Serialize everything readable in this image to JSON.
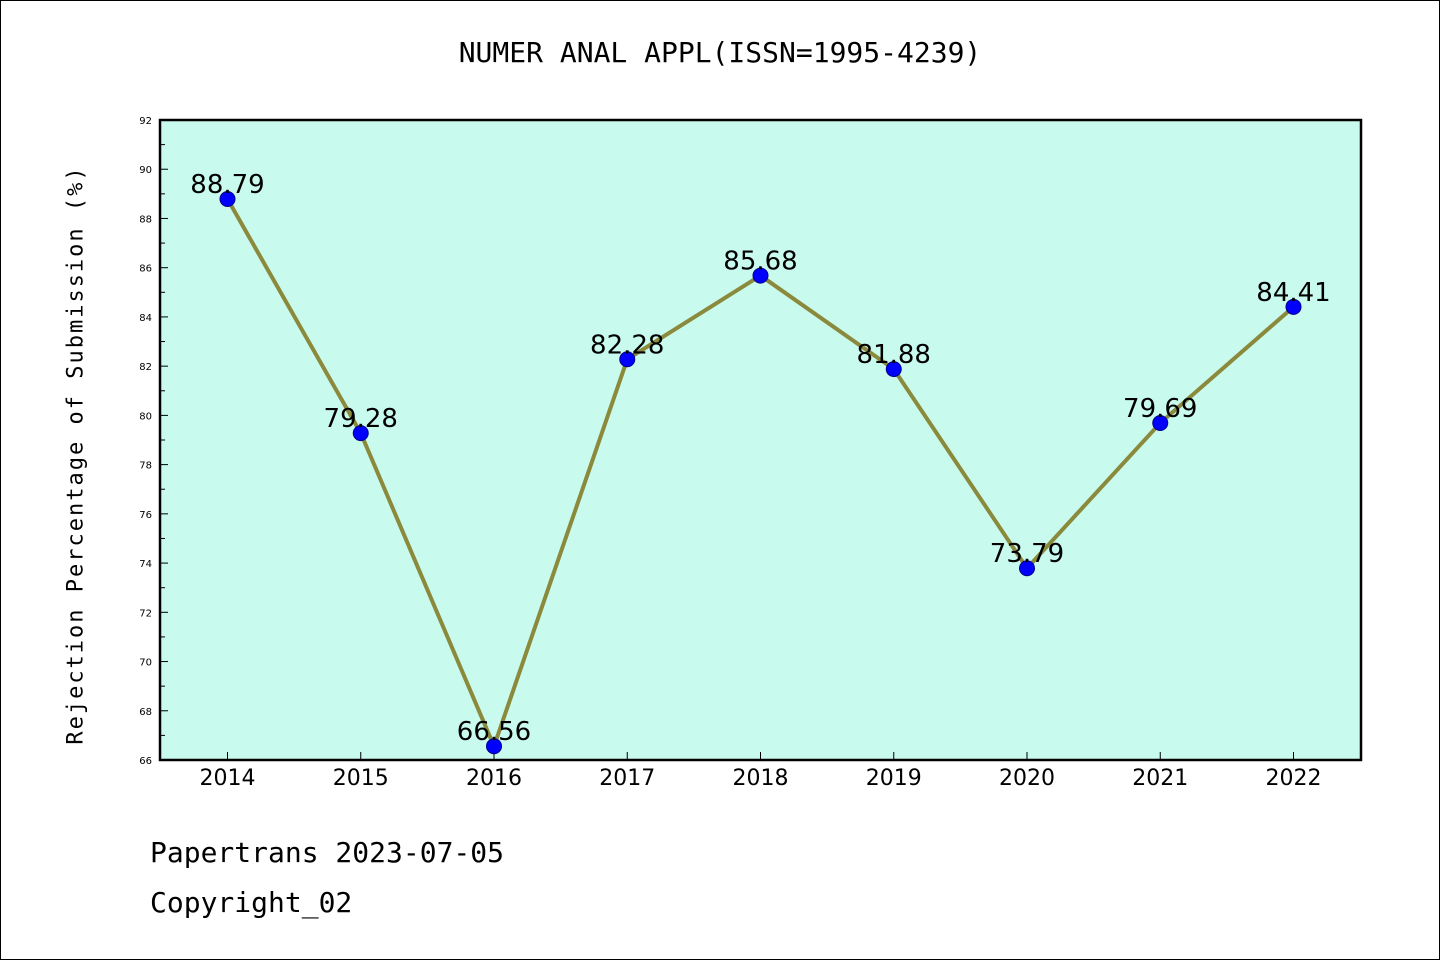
{
  "chart_data": {
    "type": "line",
    "title": "NUMER ANAL APPL(ISSN=1995-4239)",
    "xlabel": "",
    "ylabel": "Rejection Percentage of Submission (%)",
    "categories": [
      "2014",
      "2015",
      "2016",
      "2017",
      "2018",
      "2019",
      "2020",
      "2021",
      "2022"
    ],
    "series": [
      {
        "values": [
          88.79,
          79.28,
          66.56,
          82.28,
          85.68,
          81.88,
          73.79,
          79.69,
          84.41
        ],
        "data_labels": [
          "88.79",
          "79.28",
          "66.56",
          "82.28",
          "85.68",
          "81.88",
          "73.79",
          "79.69",
          "84.41"
        ]
      }
    ],
    "ylim": [
      66,
      92
    ],
    "y_ticks": [
      "66",
      "68",
      "70",
      "72",
      "74",
      "76",
      "78",
      "80",
      "82",
      "84",
      "86",
      "88",
      "90",
      "92"
    ],
    "grid": false,
    "legend": "none",
    "colors": {
      "plot_background": "#c8fbee",
      "line": "#8b8a3c",
      "marker": "#0000ff"
    }
  },
  "footer": {
    "line1": "Papertrans 2023-07-05",
    "line2": "Copyright_02"
  }
}
